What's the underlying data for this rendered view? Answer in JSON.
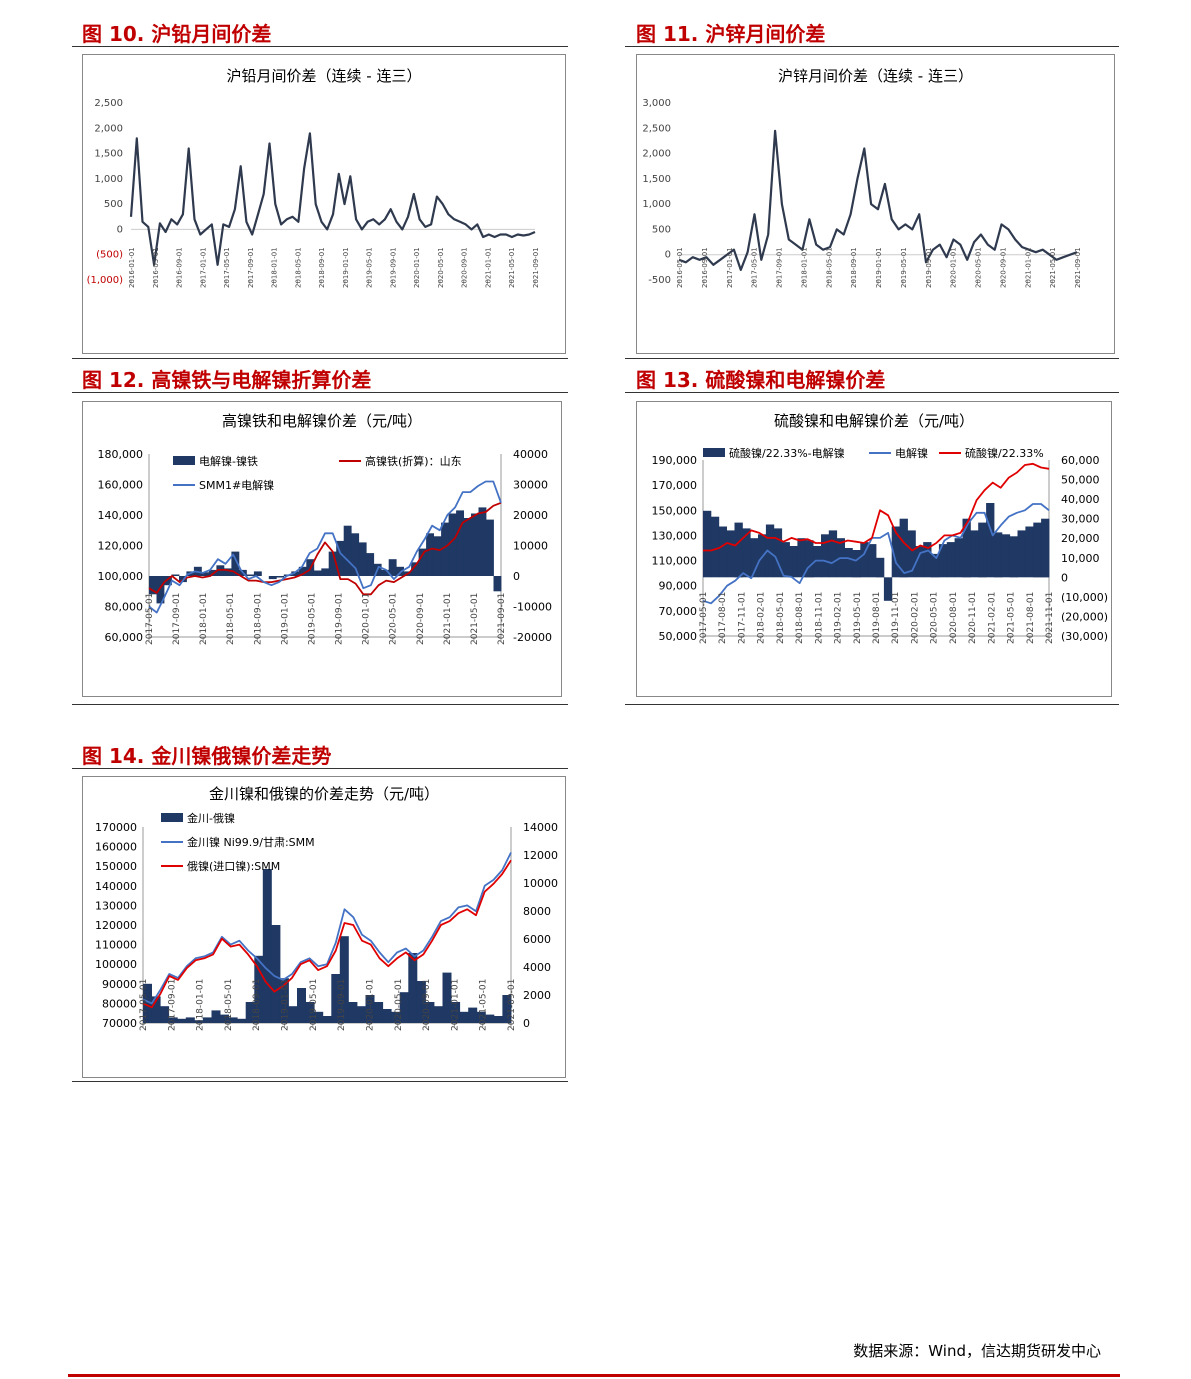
{
  "figures": {
    "f10": {
      "heading": "图 10. 沪铅月间价差"
    },
    "f11": {
      "heading": "图 11. 沪锌月间价差"
    },
    "f12": {
      "heading": "图 12. 高镍铁与电解镍折算价差"
    },
    "f13": {
      "heading": "图 13. 硫酸镍和电解镍价差"
    },
    "f14": {
      "heading": "图 14. 金川镍俄镍价差走势"
    }
  },
  "footer": {
    "source": "数据来源：Wind，信达期货研发中心"
  },
  "chart_data": [
    {
      "id": "f10",
      "type": "line",
      "title": "沪铅月间价差（连续 - 连三）",
      "y_ticks": [
        "2,500",
        "2,000",
        "1,500",
        "1,000",
        "500",
        "0",
        "(500)",
        "(1,000)"
      ],
      "y_tick_values": [
        2500,
        2000,
        1500,
        1000,
        500,
        0,
        -500,
        -1000
      ],
      "negative_tick_color": "#c00000",
      "ylim": [
        -1000,
        2500
      ],
      "x_ticks": [
        "2016-01-01",
        "2016-05-01",
        "2016-09-01",
        "2017-01-01",
        "2017-05-01",
        "2017-09-01",
        "2018-01-01",
        "2018-05-01",
        "2018-09-01",
        "2019-01-01",
        "2019-05-01",
        "2019-09-01",
        "2020-01-01",
        "2020-05-01",
        "2020-09-01",
        "2021-01-01",
        "2021-05-01",
        "2021-09-01"
      ],
      "series": [
        {
          "color": "#2f3a4f",
          "values": [
            250,
            1800,
            150,
            50,
            -700,
            120,
            -50,
            200,
            100,
            300,
            1600,
            200,
            -100,
            0,
            100,
            -700,
            100,
            50,
            400,
            1250,
            150,
            -100,
            300,
            700,
            1700,
            500,
            100,
            200,
            250,
            150,
            1200,
            1900,
            500,
            150,
            0,
            300,
            1100,
            500,
            1050,
            200,
            0,
            150,
            200,
            100,
            200,
            400,
            150,
            0,
            250,
            700,
            200,
            50,
            100,
            650,
            500,
            300,
            200,
            150,
            100,
            0,
            100,
            -150,
            -100,
            -150,
            -100,
            -100,
            -150,
            -100,
            -120,
            -100,
            -50
          ]
        }
      ]
    },
    {
      "id": "f11",
      "type": "line",
      "title": "沪锌月间价差（连续 - 连三）",
      "y_ticks": [
        "3,000",
        "2,500",
        "2,000",
        "1,500",
        "1,000",
        "500",
        "0",
        "-500"
      ],
      "y_tick_values": [
        3000,
        2500,
        2000,
        1500,
        1000,
        500,
        0,
        -500
      ],
      "ylim": [
        -500,
        3000
      ],
      "x_ticks": [
        "2016-05-01",
        "2016-09-01",
        "2017-01-01",
        "2017-05-01",
        "2017-09-01",
        "2018-01-01",
        "2018-05-01",
        "2018-09-01",
        "2019-01-01",
        "2019-05-01",
        "2019-09-01",
        "2020-01-01",
        "2020-05-01",
        "2020-09-01",
        "2021-01-01",
        "2021-05-01",
        "2021-09-01"
      ],
      "series": [
        {
          "color": "#2f3a4f",
          "values": [
            -100,
            -150,
            -50,
            -100,
            -50,
            -200,
            -100,
            0,
            100,
            -300,
            50,
            800,
            -100,
            400,
            2450,
            1000,
            300,
            200,
            100,
            700,
            200,
            100,
            150,
            500,
            400,
            800,
            1500,
            2100,
            1000,
            900,
            1400,
            700,
            500,
            600,
            500,
            800,
            -150,
            100,
            200,
            -50,
            300,
            200,
            -100,
            250,
            400,
            200,
            100,
            600,
            500,
            300,
            150,
            100,
            50,
            100,
            0,
            -100,
            -50,
            0,
            50
          ]
        }
      ]
    },
    {
      "id": "f12",
      "type": "line",
      "title": "高镍铁和电解镍价差（元/吨）",
      "y_left_ticks": [
        "180,000",
        "160,000",
        "140,000",
        "120,000",
        "100,000",
        "80,000",
        "60,000"
      ],
      "y_right_ticks": [
        "40000",
        "30000",
        "20000",
        "10000",
        "0",
        "-10000",
        "-20000"
      ],
      "ylim_left": [
        60000,
        180000
      ],
      "ylim_right": [
        -20000,
        40000
      ],
      "x_ticks": [
        "2017-05-01",
        "2017-09-01",
        "2018-01-01",
        "2018-05-01",
        "2018-09-01",
        "2019-01-01",
        "2019-05-01",
        "2019-09-01",
        "2020-01-01",
        "2020-05-01",
        "2020-09-01",
        "2021-01-01",
        "2021-05-01",
        "2021-09-01"
      ],
      "series": [
        {
          "name": "电解镍-镍铁",
          "color": "#1f3864",
          "kind": "area",
          "axis": "right",
          "values": [
            -6000,
            -9000,
            -3000,
            500,
            -2000,
            1500,
            3000,
            1200,
            2000,
            3500,
            2500,
            8000,
            2000,
            500,
            1500,
            0,
            -1000,
            -500,
            500,
            1500,
            3000,
            5500,
            1800,
            2500,
            8000,
            11500,
            16500,
            14000,
            11000,
            7500,
            4000,
            2000,
            5500,
            3000,
            1500,
            4500,
            9000,
            14000,
            13000,
            17500,
            20500,
            21500,
            19000,
            20500,
            22500,
            18500,
            -5000
          ]
        },
        {
          "name": "高镍铁(折算)：山东",
          "color": "#c00000",
          "axis": "left",
          "values": [
            92000,
            89000,
            96000,
            100000,
            96000,
            99000,
            100000,
            99000,
            100000,
            104000,
            104000,
            103000,
            100000,
            97000,
            97000,
            96000,
            96000,
            97000,
            98000,
            99000,
            101000,
            104000,
            114000,
            122000,
            116000,
            98000,
            98000,
            95000,
            88000,
            88000,
            94000,
            97000,
            96000,
            99000,
            102000,
            108000,
            116000,
            118000,
            117000,
            120000,
            125000,
            135000,
            138000,
            141000,
            142000,
            146000,
            148000
          ]
        },
        {
          "name": "SMM1#电解镍",
          "color": "#4472c4",
          "axis": "left",
          "values": [
            80000,
            76000,
            86000,
            97000,
            94000,
            101000,
            103000,
            102000,
            104000,
            111000,
            108000,
            114000,
            104000,
            98000,
            100000,
            96000,
            94000,
            96000,
            100000,
            102000,
            106000,
            115000,
            118000,
            128000,
            128000,
            115000,
            110000,
            105000,
            92000,
            94000,
            106000,
            104000,
            98000,
            103000,
            106000,
            116000,
            124000,
            133000,
            130000,
            140000,
            145000,
            155000,
            155000,
            159000,
            162000,
            162000,
            148000
          ]
        }
      ]
    },
    {
      "id": "f13",
      "type": "line",
      "title": "硫酸镍和电解镍价差（元/吨）",
      "y_left_ticks": [
        "190,000",
        "170,000",
        "150,000",
        "130,000",
        "110,000",
        "90,000",
        "70,000",
        "50,000"
      ],
      "y_right_ticks": [
        "60,000",
        "50,000",
        "40,000",
        "30,000",
        "20,000",
        "10,000",
        "0",
        "(10,000)",
        "(20,000)",
        "(30,000)"
      ],
      "ylim_left": [
        50000,
        190000
      ],
      "ylim_right": [
        -30000,
        60000
      ],
      "x_ticks": [
        "2017-05-01",
        "2017-08-01",
        "2017-11-01",
        "2018-02-01",
        "2018-05-01",
        "2018-08-01",
        "2018-11-01",
        "2019-02-01",
        "2019-05-01",
        "2019-08-01",
        "2019-11-01",
        "2020-02-01",
        "2020-05-01",
        "2020-08-01",
        "2020-11-01",
        "2021-02-01",
        "2021-05-01",
        "2021-08-01",
        "2021-11-01"
      ],
      "series": [
        {
          "name": "硫酸镍/22.33%-电解镍",
          "color": "#1f3864",
          "kind": "area",
          "axis": "right",
          "values": [
            34000,
            31000,
            26000,
            24000,
            28000,
            25000,
            20000,
            22000,
            27000,
            25000,
            18000,
            16000,
            20000,
            19000,
            16000,
            22000,
            24000,
            20000,
            15000,
            14000,
            18000,
            17000,
            10000,
            -12000,
            26000,
            30000,
            24000,
            16000,
            18000,
            12000,
            17000,
            18000,
            20000,
            30000,
            24000,
            28000,
            38000,
            23000,
            22000,
            21000,
            24000,
            26000,
            28000,
            30000
          ]
        },
        {
          "name": "电解镍",
          "color": "#4472c4",
          "axis": "left",
          "values": [
            78000,
            76000,
            82000,
            90000,
            94000,
            100000,
            96000,
            110000,
            118000,
            113000,
            98000,
            97000,
            92000,
            104000,
            110000,
            110000,
            108000,
            112000,
            112000,
            110000,
            115000,
            128000,
            128000,
            132000,
            108000,
            100000,
            102000,
            116000,
            118000,
            112000,
            126000,
            130000,
            128000,
            140000,
            148000,
            148000,
            130000,
            138000,
            145000,
            148000,
            150000,
            155000,
            155000,
            150000
          ]
        },
        {
          "name": "硫酸镍/22.33%",
          "color": "#e00000",
          "axis": "left",
          "values": [
            118000,
            118000,
            120000,
            124000,
            122000,
            128000,
            134000,
            132000,
            128000,
            128000,
            125000,
            128000,
            126000,
            127000,
            124000,
            124000,
            126000,
            124000,
            126000,
            125000,
            124000,
            128000,
            150000,
            146000,
            132000,
            124000,
            118000,
            122000,
            120000,
            124000,
            130000,
            130000,
            132000,
            142000,
            158000,
            166000,
            172000,
            168000,
            176000,
            180000,
            186000,
            187000,
            184000,
            183000
          ]
        }
      ]
    },
    {
      "id": "f14",
      "type": "line",
      "title": "金川镍和俄镍的价差走势（元/吨）",
      "y_left_ticks": [
        "170000",
        "160000",
        "150000",
        "140000",
        "130000",
        "120000",
        "110000",
        "100000",
        "90000",
        "80000",
        "70000"
      ],
      "y_right_ticks": [
        "14000",
        "12000",
        "10000",
        "8000",
        "6000",
        "4000",
        "2000",
        "0"
      ],
      "ylim_left": [
        70000,
        170000
      ],
      "ylim_right": [
        0,
        14000
      ],
      "x_ticks": [
        "2017-05-01",
        "2017-09-01",
        "2018-01-01",
        "2018-05-01",
        "2018-09-01",
        "2019-01-01",
        "2019-05-01",
        "2019-09-01",
        "2020-01-01",
        "2020-05-01",
        "2020-09-01",
        "2021-01-01",
        "2021-05-01",
        "2021-09-01"
      ],
      "series": [
        {
          "name": "金川-俄镍",
          "color": "#1f3864",
          "kind": "area",
          "axis": "right",
          "values": [
            2800,
            1900,
            1200,
            400,
            300,
            400,
            200,
            400,
            900,
            600,
            400,
            300,
            1500,
            4800,
            11000,
            7000,
            3200,
            1200,
            2500,
            1500,
            800,
            500,
            3500,
            6200,
            1500,
            1200,
            2000,
            1500,
            1000,
            800,
            2200,
            5000,
            3000,
            1500,
            1200,
            3600,
            1500,
            800,
            1100,
            800,
            600,
            500,
            2000
          ]
        },
        {
          "name": "金川镍 Ni99.9/甘肃:SMM",
          "color": "#4472c4",
          "axis": "left",
          "values": [
            82000,
            80000,
            87000,
            95000,
            93000,
            99000,
            103000,
            104000,
            106000,
            114000,
            110000,
            112000,
            107000,
            103000,
            98000,
            94000,
            92000,
            95000,
            101000,
            103000,
            99000,
            100000,
            111000,
            128000,
            124000,
            115000,
            112000,
            106000,
            101000,
            106000,
            108000,
            104000,
            107000,
            114000,
            122000,
            124000,
            129000,
            130000,
            127000,
            140000,
            143000,
            148000,
            157000
          ]
        },
        {
          "name": "俄镍(进口镍):SMM",
          "color": "#e00000",
          "axis": "left",
          "values": [
            80000,
            78000,
            85000,
            94000,
            92000,
            98000,
            102000,
            103000,
            105000,
            113000,
            109000,
            110000,
            105000,
            99000,
            91000,
            86000,
            89000,
            93000,
            100000,
            102000,
            97000,
            99000,
            107000,
            121000,
            120000,
            112000,
            110000,
            103000,
            99000,
            103000,
            106000,
            102000,
            105000,
            112000,
            120000,
            122000,
            126000,
            128000,
            125000,
            137000,
            141000,
            146000,
            153000
          ]
        }
      ]
    }
  ]
}
